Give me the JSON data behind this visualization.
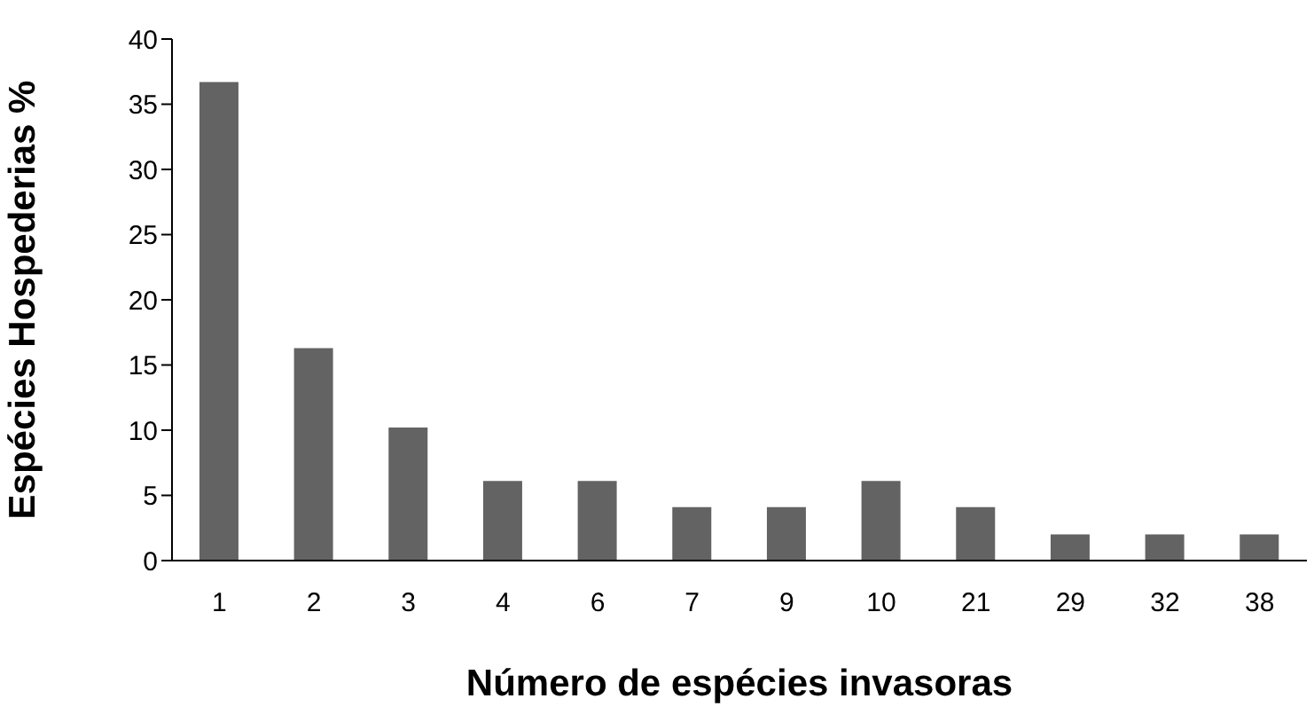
{
  "chart_data": {
    "type": "bar",
    "xlabel": "Número de espécies invasoras",
    "ylabel": "Espécies Hospederias  %",
    "categories": [
      "1",
      "2",
      "3",
      "4",
      "6",
      "7",
      "9",
      "10",
      "21",
      "29",
      "32",
      "38"
    ],
    "values": [
      36.7,
      16.3,
      10.2,
      6.1,
      6.1,
      4.1,
      4.1,
      6.1,
      4.1,
      2.0,
      2.0,
      2.0
    ],
    "color": "#636363",
    "ylim": [
      0,
      40
    ],
    "yticks": [
      0,
      5,
      10,
      15,
      20,
      25,
      30,
      35,
      40
    ],
    "grid": false,
    "legend": false
  }
}
